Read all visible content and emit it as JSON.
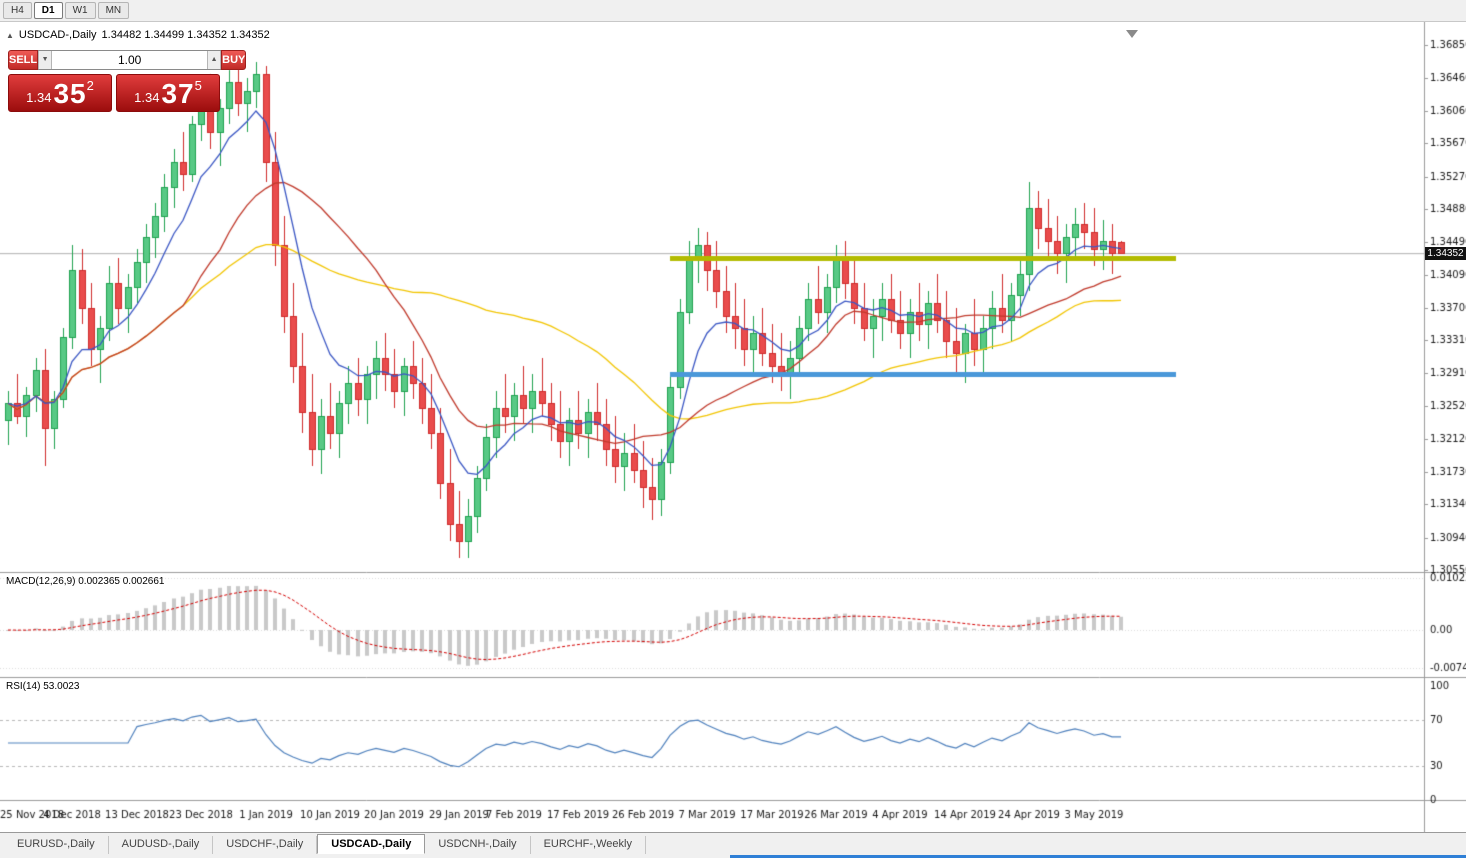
{
  "timeframes": {
    "items": [
      "H4",
      "D1",
      "W1",
      "MN"
    ],
    "active": "D1"
  },
  "header": {
    "collapse_icon": "▲",
    "symbol_period": "USDCAD-,Daily",
    "ohlc": "1.34482 1.34499 1.34352 1.34352"
  },
  "trade_panel": {
    "sell_label": "SELL",
    "buy_label": "BUY",
    "volume": "1.00",
    "dec_icon": "▼",
    "inc_icon": "▲",
    "sell_price": {
      "prefix": "1.34",
      "main": "35",
      "sup": "2"
    },
    "buy_price": {
      "prefix": "1.34",
      "main": "37",
      "sup": "5"
    }
  },
  "indicator_labels": {
    "macd": "MACD(12,26,9) 0.002365 0.002661",
    "rsi": "RSI(14) 53.0023"
  },
  "price_tag": "1.34352",
  "bottom_tabs": {
    "items": [
      "EURUSD-,Daily",
      "AUDUSD-,Daily",
      "USDCHF-,Daily",
      "USDCAD-,Daily",
      "USDCNH-,Daily",
      "EURCHF-,Weekly"
    ],
    "active_index": 3
  },
  "colors": {
    "up_border": "#1fa24f",
    "up_fill": "#58c985",
    "down_border": "#cf2b2b",
    "down_fill": "#e94c4c",
    "ma_fast": "#3a56c4",
    "ma_slow": "#c0392b",
    "ma_long": "#f2c500",
    "level_yellow": "#b3bb00",
    "level_blue": "#4a98d9",
    "macd_hist": "#c9c9c9",
    "macd_signal": "#d40000",
    "rsi_line": "#4f81bd",
    "bid_line": "#b0b0b0",
    "axis_text": "#1a1a1a",
    "separator": "#9a9a9a"
  },
  "chart_data": {
    "type": "candlestick",
    "symbol": "USDCAD-",
    "period": "Daily",
    "ohlc": {
      "open": 1.34482,
      "high": 1.34499,
      "low": 1.34352,
      "close": 1.34352
    },
    "price_max": 1.3685,
    "price_min": 1.3055,
    "current_price": 1.34352,
    "price_ticks": [
      "1.36850",
      "1.36460",
      "1.36060",
      "1.35670",
      "1.35270",
      "1.34880",
      "1.34490",
      "1.34090",
      "1.33700",
      "1.33310",
      "1.32910",
      "1.32520",
      "1.32120",
      "1.31730",
      "1.31340",
      "1.30940",
      "1.30550"
    ],
    "date_labels": [
      {
        "label": "25 Nov 2018",
        "i": 0
      },
      {
        "label": "4 Dec 2018",
        "i": 7
      },
      {
        "label": "13 Dec 2018",
        "i": 14
      },
      {
        "label": "23 Dec 2018",
        "i": 21
      },
      {
        "label": "1 Jan 2019",
        "i": 28
      },
      {
        "label": "10 Jan 2019",
        "i": 35
      },
      {
        "label": "20 Jan 2019",
        "i": 42
      },
      {
        "label": "29 Jan 2019",
        "i": 49
      },
      {
        "label": "7 Feb 2019",
        "i": 55
      },
      {
        "label": "17 Feb 2019",
        "i": 62
      },
      {
        "label": "26 Feb 2019",
        "i": 69
      },
      {
        "label": "7 Mar 2019",
        "i": 76
      },
      {
        "label": "17 Mar 2019",
        "i": 83
      },
      {
        "label": "26 Mar 2019",
        "i": 90
      },
      {
        "label": "4 Apr 2019",
        "i": 97
      },
      {
        "label": "14 Apr 2019",
        "i": 104
      },
      {
        "label": "24 Apr 2019",
        "i": 111
      },
      {
        "label": "3 May 2019",
        "i": 118
      }
    ],
    "candles": [
      [
        1.3235,
        1.327,
        1.3205,
        1.3255
      ],
      [
        1.3255,
        1.329,
        1.323,
        1.324
      ],
      [
        1.324,
        1.3275,
        1.3215,
        1.3265
      ],
      [
        1.3265,
        1.331,
        1.3245,
        1.3295
      ],
      [
        1.3295,
        1.332,
        1.318,
        1.3225
      ],
      [
        1.3225,
        1.327,
        1.32,
        1.326
      ],
      [
        1.326,
        1.3345,
        1.325,
        1.3335
      ],
      [
        1.3335,
        1.3445,
        1.332,
        1.3415
      ],
      [
        1.3415,
        1.344,
        1.335,
        1.337
      ],
      [
        1.337,
        1.34,
        1.33,
        1.332
      ],
      [
        1.332,
        1.336,
        1.328,
        1.3345
      ],
      [
        1.3345,
        1.342,
        1.333,
        1.34
      ],
      [
        1.34,
        1.343,
        1.335,
        1.337
      ],
      [
        1.337,
        1.341,
        1.334,
        1.3395
      ],
      [
        1.3395,
        1.344,
        1.3375,
        1.3425
      ],
      [
        1.3425,
        1.347,
        1.34,
        1.3455
      ],
      [
        1.3455,
        1.3495,
        1.343,
        1.348
      ],
      [
        1.348,
        1.353,
        1.346,
        1.3515
      ],
      [
        1.3515,
        1.356,
        1.349,
        1.3545
      ],
      [
        1.3545,
        1.358,
        1.351,
        1.353
      ],
      [
        1.353,
        1.36,
        1.352,
        1.359
      ],
      [
        1.359,
        1.364,
        1.357,
        1.362
      ],
      [
        1.362,
        1.365,
        1.356,
        1.358
      ],
      [
        1.358,
        1.362,
        1.354,
        1.361
      ],
      [
        1.361,
        1.3655,
        1.359,
        1.364
      ],
      [
        1.364,
        1.366,
        1.36,
        1.3615
      ],
      [
        1.3615,
        1.3645,
        1.358,
        1.363
      ],
      [
        1.363,
        1.3665,
        1.361,
        1.365
      ],
      [
        1.365,
        1.366,
        1.352,
        1.3545
      ],
      [
        1.3545,
        1.358,
        1.342,
        1.3445
      ],
      [
        1.3445,
        1.348,
        1.334,
        1.336
      ],
      [
        1.336,
        1.34,
        1.328,
        1.33
      ],
      [
        1.33,
        1.334,
        1.322,
        1.3245
      ],
      [
        1.3245,
        1.329,
        1.318,
        1.32
      ],
      [
        1.32,
        1.326,
        1.317,
        1.324
      ],
      [
        1.324,
        1.328,
        1.32,
        1.322
      ],
      [
        1.322,
        1.327,
        1.319,
        1.3255
      ],
      [
        1.3255,
        1.33,
        1.323,
        1.328
      ],
      [
        1.328,
        1.331,
        1.324,
        1.326
      ],
      [
        1.326,
        1.33,
        1.323,
        1.329
      ],
      [
        1.329,
        1.333,
        1.326,
        1.331
      ],
      [
        1.331,
        1.334,
        1.327,
        1.329
      ],
      [
        1.329,
        1.332,
        1.325,
        1.327
      ],
      [
        1.327,
        1.331,
        1.324,
        1.33
      ],
      [
        1.33,
        1.333,
        1.326,
        1.328
      ],
      [
        1.328,
        1.331,
        1.323,
        1.325
      ],
      [
        1.325,
        1.329,
        1.32,
        1.322
      ],
      [
        1.322,
        1.325,
        1.314,
        1.316
      ],
      [
        1.316,
        1.32,
        1.309,
        1.311
      ],
      [
        1.311,
        1.315,
        1.307,
        1.309
      ],
      [
        1.309,
        1.314,
        1.307,
        1.312
      ],
      [
        1.312,
        1.318,
        1.31,
        1.3165
      ],
      [
        1.3165,
        1.323,
        1.315,
        1.3215
      ],
      [
        1.3215,
        1.327,
        1.319,
        1.325
      ],
      [
        1.325,
        1.329,
        1.322,
        1.324
      ],
      [
        1.324,
        1.328,
        1.321,
        1.3265
      ],
      [
        1.3265,
        1.33,
        1.323,
        1.325
      ],
      [
        1.325,
        1.329,
        1.322,
        1.327
      ],
      [
        1.327,
        1.331,
        1.324,
        1.3255
      ],
      [
        1.3255,
        1.328,
        1.321,
        1.323
      ],
      [
        1.323,
        1.327,
        1.319,
        1.321
      ],
      [
        1.321,
        1.325,
        1.318,
        1.3235
      ],
      [
        1.3235,
        1.327,
        1.32,
        1.322
      ],
      [
        1.322,
        1.326,
        1.319,
        1.3245
      ],
      [
        1.3245,
        1.328,
        1.321,
        1.323
      ],
      [
        1.323,
        1.326,
        1.318,
        1.32
      ],
      [
        1.32,
        1.324,
        1.316,
        1.318
      ],
      [
        1.318,
        1.322,
        1.315,
        1.3195
      ],
      [
        1.3195,
        1.323,
        1.316,
        1.3175
      ],
      [
        1.3175,
        1.321,
        1.313,
        1.3155
      ],
      [
        1.3155,
        1.319,
        1.3115,
        1.314
      ],
      [
        1.314,
        1.32,
        1.312,
        1.3185
      ],
      [
        1.3185,
        1.329,
        1.317,
        1.3275
      ],
      [
        1.3275,
        1.338,
        1.326,
        1.3365
      ],
      [
        1.3365,
        1.345,
        1.335,
        1.343
      ],
      [
        1.343,
        1.3465,
        1.34,
        1.3445
      ],
      [
        1.3445,
        1.346,
        1.339,
        1.3415
      ],
      [
        1.3415,
        1.345,
        1.337,
        1.339
      ],
      [
        1.339,
        1.342,
        1.334,
        1.336
      ],
      [
        1.336,
        1.34,
        1.332,
        1.3345
      ],
      [
        1.3345,
        1.338,
        1.33,
        1.332
      ],
      [
        1.332,
        1.336,
        1.329,
        1.334
      ],
      [
        1.334,
        1.337,
        1.33,
        1.3315
      ],
      [
        1.3315,
        1.335,
        1.328,
        1.33
      ],
      [
        1.33,
        1.334,
        1.327,
        1.329
      ],
      [
        1.329,
        1.333,
        1.326,
        1.331
      ],
      [
        1.331,
        1.336,
        1.329,
        1.3345
      ],
      [
        1.3345,
        1.34,
        1.333,
        1.338
      ],
      [
        1.338,
        1.342,
        1.335,
        1.3365
      ],
      [
        1.3365,
        1.341,
        1.334,
        1.3395
      ],
      [
        1.3395,
        1.3445,
        1.3375,
        1.343
      ],
      [
        1.343,
        1.345,
        1.338,
        1.34
      ],
      [
        1.34,
        1.343,
        1.335,
        1.337
      ],
      [
        1.337,
        1.34,
        1.333,
        1.3345
      ],
      [
        1.3345,
        1.338,
        1.331,
        1.336
      ],
      [
        1.336,
        1.34,
        1.333,
        1.338
      ],
      [
        1.338,
        1.341,
        1.334,
        1.3355
      ],
      [
        1.3355,
        1.339,
        1.332,
        1.334
      ],
      [
        1.334,
        1.338,
        1.331,
        1.3365
      ],
      [
        1.3365,
        1.34,
        1.333,
        1.335
      ],
      [
        1.335,
        1.339,
        1.332,
        1.3375
      ],
      [
        1.3375,
        1.341,
        1.334,
        1.3355
      ],
      [
        1.3355,
        1.339,
        1.331,
        1.333
      ],
      [
        1.333,
        1.337,
        1.329,
        1.3315
      ],
      [
        1.3315,
        1.335,
        1.328,
        1.334
      ],
      [
        1.334,
        1.338,
        1.33,
        1.332
      ],
      [
        1.332,
        1.336,
        1.329,
        1.3345
      ],
      [
        1.3345,
        1.339,
        1.332,
        1.337
      ],
      [
        1.337,
        1.341,
        1.334,
        1.3355
      ],
      [
        1.3355,
        1.34,
        1.333,
        1.3385
      ],
      [
        1.3385,
        1.343,
        1.336,
        1.341
      ],
      [
        1.341,
        1.352,
        1.339,
        1.349
      ],
      [
        1.349,
        1.351,
        1.344,
        1.3465
      ],
      [
        1.3465,
        1.35,
        1.343,
        1.345
      ],
      [
        1.345,
        1.348,
        1.341,
        1.3435
      ],
      [
        1.3435,
        1.347,
        1.34,
        1.3455
      ],
      [
        1.3455,
        1.349,
        1.343,
        1.347
      ],
      [
        1.347,
        1.3495,
        1.344,
        1.346
      ],
      [
        1.346,
        1.349,
        1.342,
        1.344
      ],
      [
        1.344,
        1.3475,
        1.3415,
        1.345
      ],
      [
        1.345,
        1.347,
        1.341,
        1.3435
      ],
      [
        1.34482,
        1.34499,
        1.34352,
        1.34352
      ]
    ],
    "levels": [
      {
        "name": "resistance-line",
        "color_key": "level_yellow",
        "price": 1.3429,
        "from_i": 72,
        "to_i": 127
      },
      {
        "name": "support-line",
        "color_key": "level_blue",
        "price": 1.329,
        "from_i": 72,
        "to_i": 127
      }
    ],
    "moving_averages": [
      {
        "method": "sma",
        "period": 45,
        "color_key": "ma_long"
      },
      {
        "method": "sma",
        "period": 20,
        "color_key": "ma_slow"
      },
      {
        "method": "ema",
        "period": 8,
        "color_key": "ma_fast"
      }
    ],
    "macd": {
      "fast": 12,
      "slow": 26,
      "signal": 9,
      "current": "0.002365",
      "signal_current": "0.002661",
      "ticks": [
        "0.010229",
        "0.00",
        "-0.007477"
      ],
      "range_max": 0.010229,
      "range_min": -0.007477
    },
    "rsi": {
      "period": 14,
      "current": "53.0023",
      "ticks": [
        "100",
        "70",
        "30",
        "0"
      ],
      "levels": [
        70,
        30
      ]
    }
  }
}
